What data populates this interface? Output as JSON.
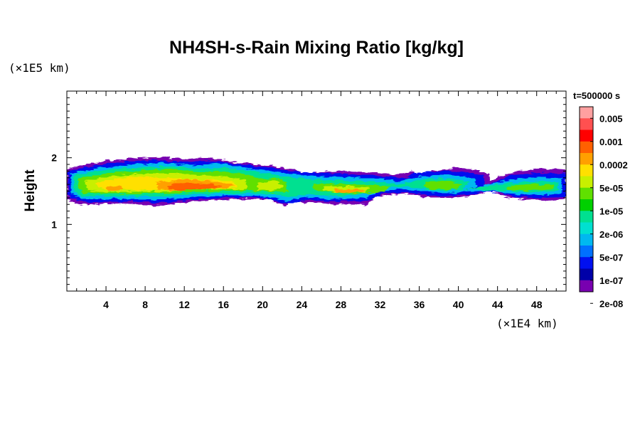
{
  "chart_data": {
    "type": "heatmap",
    "title": "NH4SH-s-Rain Mixing Ratio [kg/kg]",
    "time_label": "t=500000 s",
    "xlabel": "",
    "x_unit": "(×1E4 km)",
    "ylabel": "Height",
    "y_unit": "(×1E5 km)",
    "xlim": [
      0,
      51
    ],
    "ylim": [
      0,
      3
    ],
    "x_ticks": [
      "4",
      "8",
      "12",
      "16",
      "20",
      "24",
      "28",
      "32",
      "36",
      "40",
      "44",
      "48"
    ],
    "x_tick_values": [
      4,
      8,
      12,
      16,
      20,
      24,
      28,
      32,
      36,
      40,
      44,
      48
    ],
    "y_ticks": [
      "1",
      "2"
    ],
    "y_tick_values": [
      1,
      2
    ],
    "colorbar": {
      "labels": [
        "0.005",
        "0.001",
        "0.0002",
        "5e-05",
        "1e-05",
        "2e-06",
        "5e-07",
        "1e-07",
        "2e-08"
      ],
      "colors": [
        "#ffa0a0",
        "#ff5050",
        "#ff0000",
        "#ff6000",
        "#ffa000",
        "#ffe000",
        "#c8f000",
        "#60e000",
        "#00d000",
        "#00e090",
        "#00e0d0",
        "#00b8f0",
        "#0070ff",
        "#0010f0",
        "#0000a8",
        "#7800b0"
      ]
    },
    "field_summary": {
      "band_bottom": 1.3,
      "band_top": 1.9,
      "gaps": [
        [
          41.5,
          42.5
        ],
        [
          43.5,
          44.5
        ]
      ],
      "peak_region_x": [
        10,
        18
      ],
      "peak_value_class": "0.0002"
    }
  }
}
